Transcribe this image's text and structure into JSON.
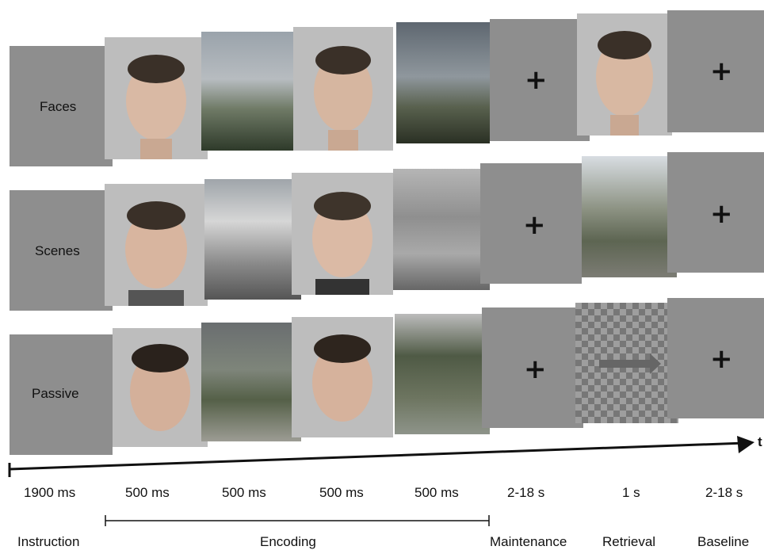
{
  "rows": [
    {
      "label": "Faces"
    },
    {
      "label": "Scenes"
    },
    {
      "label": "Passive"
    }
  ],
  "fixation_symbol": "+",
  "axis_label": "t",
  "timings": [
    "1900 ms",
    "500 ms",
    "500 ms",
    "500 ms",
    "500 ms",
    "2-18 s",
    "1 s",
    "2-18 s"
  ],
  "phases": {
    "instruction": "Instruction",
    "encoding": "Encoding",
    "maintenance": "Maintenance",
    "retrieval": "Retrieval",
    "baseline": "Baseline"
  }
}
